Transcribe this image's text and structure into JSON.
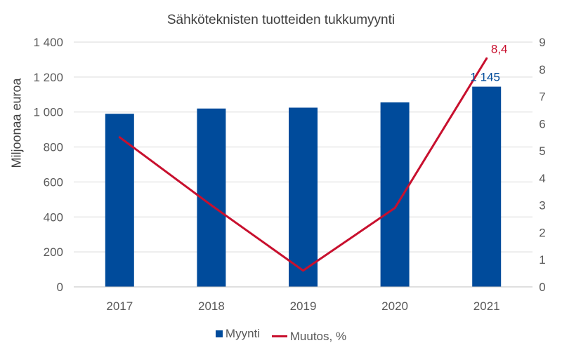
{
  "chart_data": {
    "type": "bar",
    "title": "Sähköteknisten tuotteiden tukkumyynti",
    "ylabel": "Miljoonaa euroa",
    "categories": [
      "2017",
      "2018",
      "2019",
      "2020",
      "2021"
    ],
    "ylim": [
      0,
      1400
    ],
    "y2lim": [
      0,
      9
    ],
    "y_ticks": [
      "0",
      "200",
      "400",
      "600",
      "800",
      "1 000",
      "1 200",
      "1 400"
    ],
    "y2_ticks": [
      "0",
      "1",
      "2",
      "3",
      "4",
      "5",
      "6",
      "7",
      "8",
      "9"
    ],
    "grid": true,
    "legend_position": "bottom",
    "series": [
      {
        "name": "Myynti",
        "type": "bar",
        "axis": "left",
        "color": "#004B9B",
        "values": [
          990,
          1020,
          1025,
          1055,
          1145
        ]
      },
      {
        "name": "Muutos, %",
        "type": "line",
        "axis": "right",
        "color": "#C8102E",
        "values": [
          5.5,
          3.0,
          0.6,
          2.9,
          8.4
        ]
      }
    ],
    "data_labels": [
      {
        "series": "Myynti",
        "category": "2021",
        "text": "1 145"
      },
      {
        "series": "Muutos, %",
        "category": "2021",
        "text": "8,4"
      }
    ]
  }
}
